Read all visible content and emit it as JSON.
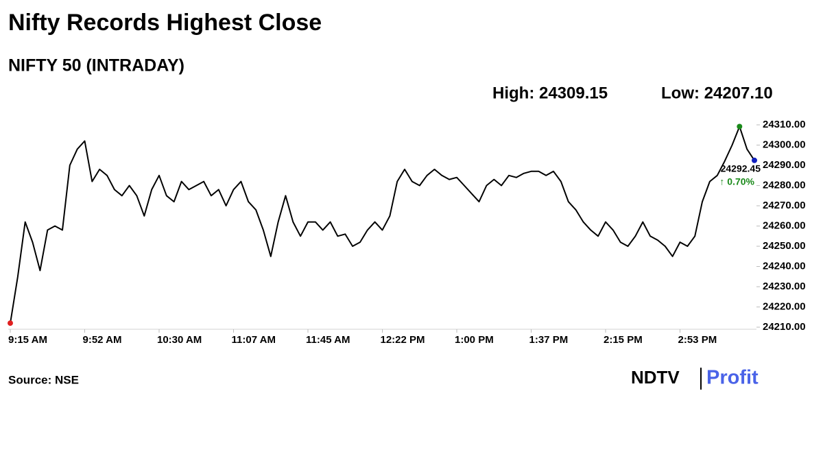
{
  "chart_data": {
    "type": "line",
    "title": "Nifty Records Highest Close",
    "subtitle": "NIFTY 50 (INTRADAY)",
    "high_label": "High: 24309.15",
    "low_label": "Low: 24207.10",
    "source": "Source: NSE",
    "brand": {
      "name": "NDTV",
      "product": "Profit"
    },
    "annotation": {
      "price": "24292.45",
      "change": "↑ 0.70%"
    },
    "color": "#000000",
    "marker_colors": {
      "first": "#e02020",
      "high": "#1a8a1a",
      "last": "#1020c0"
    },
    "categories": [
      "9:15 AM",
      null,
      null,
      null,
      null,
      null,
      null,
      null,
      null,
      null,
      "9:52 AM",
      null,
      null,
      null,
      null,
      null,
      null,
      null,
      null,
      null,
      "10:30 AM",
      null,
      null,
      null,
      null,
      null,
      null,
      null,
      null,
      null,
      "11:07 AM",
      null,
      null,
      null,
      null,
      null,
      null,
      null,
      null,
      null,
      "11:45 AM",
      null,
      null,
      null,
      null,
      null,
      null,
      null,
      null,
      null,
      "12:22 PM",
      null,
      null,
      null,
      null,
      null,
      null,
      null,
      null,
      null,
      "1:00 PM",
      null,
      null,
      null,
      null,
      null,
      null,
      null,
      null,
      null,
      "1:37 PM",
      null,
      null,
      null,
      null,
      null,
      null,
      null,
      null,
      null,
      "2:15 PM",
      null,
      null,
      null,
      null,
      null,
      null,
      null,
      null,
      null,
      "2:53 PM",
      null,
      null,
      null,
      null,
      null,
      null,
      null,
      null,
      null,
      null
    ],
    "values": [
      24212,
      24235,
      24262,
      24252,
      24238,
      24258,
      24260,
      24258,
      24290,
      24298,
      24302,
      24282,
      24288,
      24285,
      24278,
      24275,
      24280,
      24275,
      24265,
      24278,
      24285,
      24275,
      24272,
      24282,
      24278,
      24280,
      24282,
      24275,
      24278,
      24270,
      24278,
      24282,
      24272,
      24268,
      24258,
      24245,
      24262,
      24275,
      24262,
      24255,
      24262,
      24262,
      24258,
      24262,
      24255,
      24256,
      24250,
      24252,
      24258,
      24262,
      24258,
      24265,
      24282,
      24288,
      24282,
      24280,
      24285,
      24288,
      24285,
      24283,
      24284,
      24280,
      24276,
      24272,
      24280,
      24283,
      24280,
      24285,
      24284,
      24286,
      24287,
      24287,
      24285,
      24287,
      24282,
      24272,
      24268,
      24262,
      24258,
      24255,
      24262,
      24258,
      24252,
      24250,
      24255,
      24262,
      24255,
      24253,
      24250,
      24245,
      24252,
      24250,
      24255,
      24272,
      24282,
      24285,
      24292,
      24300,
      24309.15,
      24298,
      24292.45
    ],
    "ylim": [
      24210,
      24310
    ],
    "yticks": [
      {
        "value": 24210,
        "label": "24210.00"
      },
      {
        "value": 24220,
        "label": "24220.00"
      },
      {
        "value": 24230,
        "label": "24230.00"
      },
      {
        "value": 24240,
        "label": "24240.00"
      },
      {
        "value": 24250,
        "label": "24250.00"
      },
      {
        "value": 24260,
        "label": "24260.00"
      },
      {
        "value": 24270,
        "label": "24270.00"
      },
      {
        "value": 24280,
        "label": "24280.00"
      },
      {
        "value": 24290,
        "label": "24290.00"
      },
      {
        "value": 24300,
        "label": "24300.00"
      },
      {
        "value": 24310,
        "label": "24310.00"
      }
    ]
  }
}
